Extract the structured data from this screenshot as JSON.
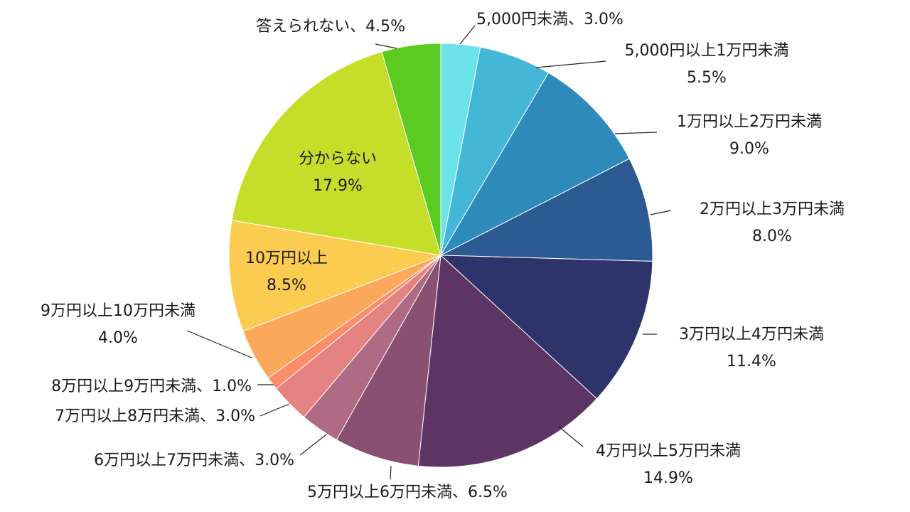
{
  "chart_data": {
    "type": "pie",
    "start_angle_deg": 0,
    "direction": "clockwise",
    "slices": [
      {
        "label": "5,000円未満",
        "value": 3.0,
        "display": "3.0%",
        "color": "#6ce3e8"
      },
      {
        "label": "5,000円以上1万円未満",
        "value": 5.5,
        "display": "5.5%",
        "color": "#44b6d6"
      },
      {
        "label": "1万円以上2万円未満",
        "value": 9.0,
        "display": "9.0%",
        "color": "#2e8abb"
      },
      {
        "label": "2万円以上3万円未満",
        "value": 8.0,
        "display": "8.0%",
        "color": "#2c5b94"
      },
      {
        "label": "3万円以上4万円未満",
        "value": 11.4,
        "display": "11.4%",
        "color": "#2f336b"
      },
      {
        "label": "4万円以上5万円未満",
        "value": 14.9,
        "display": "14.9%",
        "color": "#5d3565"
      },
      {
        "label": "5万円以上6万円未満",
        "value": 6.5,
        "display": "6.5%",
        "color": "#8a5072"
      },
      {
        "label": "6万円以上7万円未満",
        "value": 3.0,
        "display": "3.0%",
        "color": "#b06b84"
      },
      {
        "label": "7万円以上8万円未満",
        "value": 3.0,
        "display": "3.0%",
        "color": "#e58383"
      },
      {
        "label": "8万円以上9万円未満",
        "value": 1.0,
        "display": "1.0%",
        "color": "#fc8d6a"
      },
      {
        "label": "9万円以上10万円未満",
        "value": 4.0,
        "display": "4.0%",
        "color": "#fca85a"
      },
      {
        "label": "10万円以上",
        "value": 8.5,
        "display": "8.5%",
        "color": "#fccc50"
      },
      {
        "label": "分からない",
        "value": 17.9,
        "display": "17.9%",
        "color": "#c5de2a"
      },
      {
        "label": "答えられない",
        "value": 4.5,
        "display": "4.5%",
        "color": "#5bcb22"
      }
    ]
  }
}
